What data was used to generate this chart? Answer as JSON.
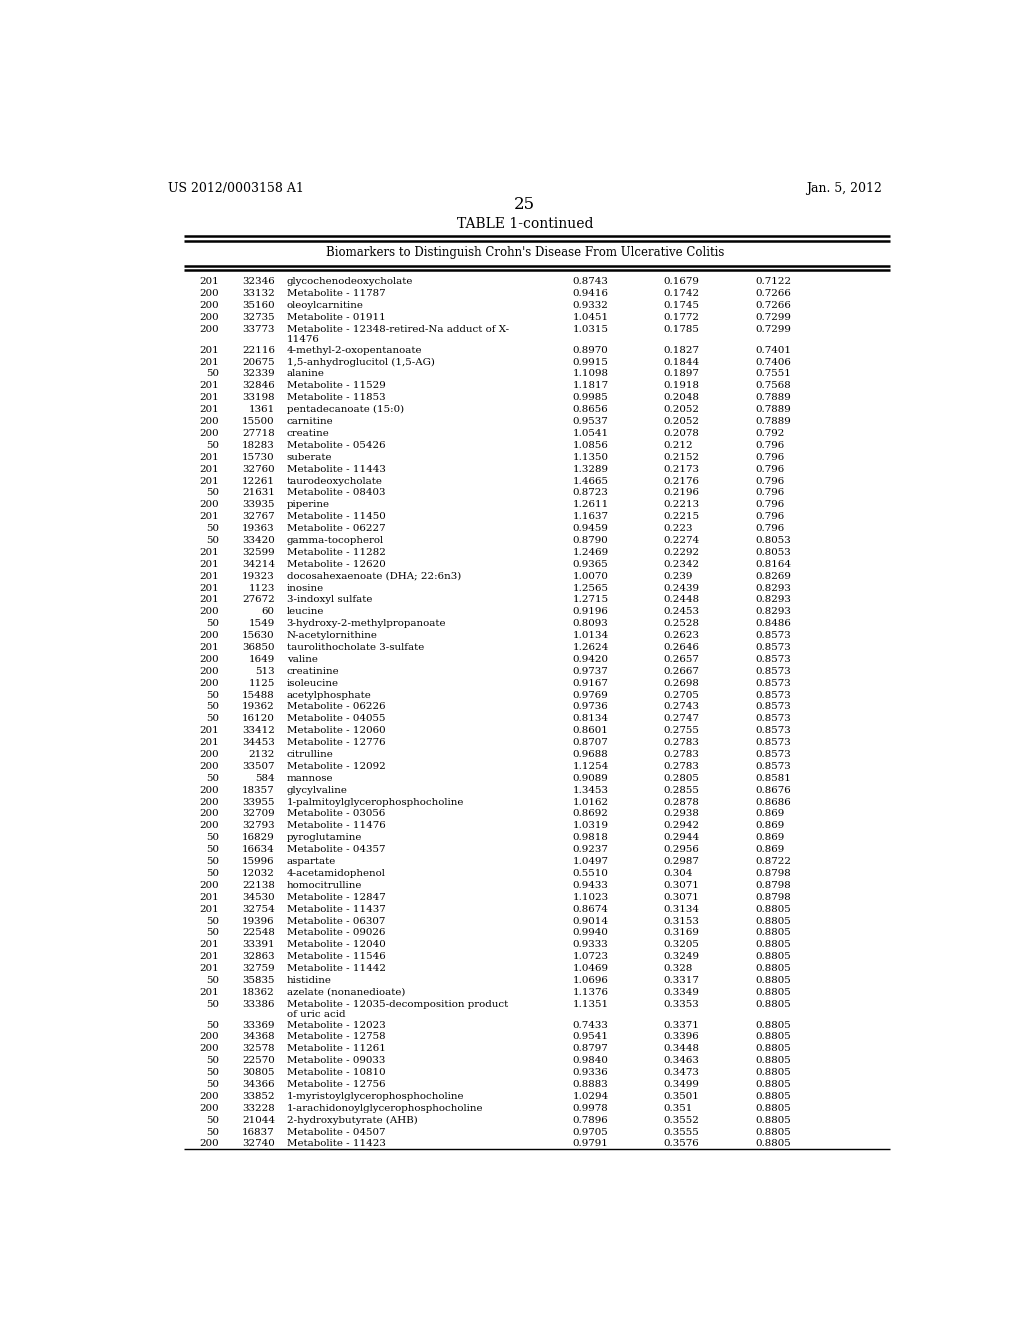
{
  "header_left": "US 2012/0003158 A1",
  "header_right": "Jan. 5, 2012",
  "page_number": "25",
  "table_title": "TABLE 1-continued",
  "table_subtitle": "Biomarkers to Distinguish Crohn's Disease From Ulcerative Colitis",
  "rows": [
    [
      "201",
      "32346",
      "glycochenodeoxycholate",
      "0.8743",
      "0.1679",
      "0.7122"
    ],
    [
      "200",
      "33132",
      "Metabolite - 11787",
      "0.9416",
      "0.1742",
      "0.7266"
    ],
    [
      "200",
      "35160",
      "oleoylcarnitine",
      "0.9332",
      "0.1745",
      "0.7266"
    ],
    [
      "200",
      "32735",
      "Metabolite - 01911",
      "1.0451",
      "0.1772",
      "0.7299"
    ],
    [
      "200",
      "33773",
      "Metabolite - 12348-retired-Na adduct of X-\n11476",
      "1.0315",
      "0.1785",
      "0.7299"
    ],
    [
      "201",
      "22116",
      "4-methyl-2-oxopentanoate",
      "0.8970",
      "0.1827",
      "0.7401"
    ],
    [
      "201",
      "20675",
      "1,5-anhydroglucitol (1,5-AG)",
      "0.9915",
      "0.1844",
      "0.7406"
    ],
    [
      "50",
      "32339",
      "alanine",
      "1.1098",
      "0.1897",
      "0.7551"
    ],
    [
      "201",
      "32846",
      "Metabolite - 11529",
      "1.1817",
      "0.1918",
      "0.7568"
    ],
    [
      "201",
      "33198",
      "Metabolite - 11853",
      "0.9985",
      "0.2048",
      "0.7889"
    ],
    [
      "201",
      "1361",
      "pentadecanoate (15:0)",
      "0.8656",
      "0.2052",
      "0.7889"
    ],
    [
      "200",
      "15500",
      "carnitine",
      "0.9537",
      "0.2052",
      "0.7889"
    ],
    [
      "200",
      "27718",
      "creatine",
      "1.0541",
      "0.2078",
      "0.792"
    ],
    [
      "50",
      "18283",
      "Metabolite - 05426",
      "1.0856",
      "0.212",
      "0.796"
    ],
    [
      "201",
      "15730",
      "suberate",
      "1.1350",
      "0.2152",
      "0.796"
    ],
    [
      "201",
      "32760",
      "Metabolite - 11443",
      "1.3289",
      "0.2173",
      "0.796"
    ],
    [
      "201",
      "12261",
      "taurodeoxycholate",
      "1.4665",
      "0.2176",
      "0.796"
    ],
    [
      "50",
      "21631",
      "Metabolite - 08403",
      "0.8723",
      "0.2196",
      "0.796"
    ],
    [
      "200",
      "33935",
      "piperine",
      "1.2611",
      "0.2213",
      "0.796"
    ],
    [
      "201",
      "32767",
      "Metabolite - 11450",
      "1.1637",
      "0.2215",
      "0.796"
    ],
    [
      "50",
      "19363",
      "Metabolite - 06227",
      "0.9459",
      "0.223",
      "0.796"
    ],
    [
      "50",
      "33420",
      "gamma-tocopherol",
      "0.8790",
      "0.2274",
      "0.8053"
    ],
    [
      "201",
      "32599",
      "Metabolite - 11282",
      "1.2469",
      "0.2292",
      "0.8053"
    ],
    [
      "201",
      "34214",
      "Metabolite - 12620",
      "0.9365",
      "0.2342",
      "0.8164"
    ],
    [
      "201",
      "19323",
      "docosahexaenoate (DHA; 22:6n3)",
      "1.0070",
      "0.239",
      "0.8269"
    ],
    [
      "201",
      "1123",
      "inosine",
      "1.2565",
      "0.2439",
      "0.8293"
    ],
    [
      "201",
      "27672",
      "3-indoxyl sulfate",
      "1.2715",
      "0.2448",
      "0.8293"
    ],
    [
      "200",
      "60",
      "leucine",
      "0.9196",
      "0.2453",
      "0.8293"
    ],
    [
      "50",
      "1549",
      "3-hydroxy-2-methylpropanoate",
      "0.8093",
      "0.2528",
      "0.8486"
    ],
    [
      "200",
      "15630",
      "N-acetylornithine",
      "1.0134",
      "0.2623",
      "0.8573"
    ],
    [
      "201",
      "36850",
      "taurolithocholate 3-sulfate",
      "1.2624",
      "0.2646",
      "0.8573"
    ],
    [
      "200",
      "1649",
      "valine",
      "0.9420",
      "0.2657",
      "0.8573"
    ],
    [
      "200",
      "513",
      "creatinine",
      "0.9737",
      "0.2667",
      "0.8573"
    ],
    [
      "200",
      "1125",
      "isoleucine",
      "0.9167",
      "0.2698",
      "0.8573"
    ],
    [
      "50",
      "15488",
      "acetylphosphate",
      "0.9769",
      "0.2705",
      "0.8573"
    ],
    [
      "50",
      "19362",
      "Metabolite - 06226",
      "0.9736",
      "0.2743",
      "0.8573"
    ],
    [
      "50",
      "16120",
      "Metabolite - 04055",
      "0.8134",
      "0.2747",
      "0.8573"
    ],
    [
      "201",
      "33412",
      "Metabolite - 12060",
      "0.8601",
      "0.2755",
      "0.8573"
    ],
    [
      "201",
      "34453",
      "Metabolite - 12776",
      "0.8707",
      "0.2783",
      "0.8573"
    ],
    [
      "200",
      "2132",
      "citrulline",
      "0.9688",
      "0.2783",
      "0.8573"
    ],
    [
      "200",
      "33507",
      "Metabolite - 12092",
      "1.1254",
      "0.2783",
      "0.8573"
    ],
    [
      "50",
      "584",
      "mannose",
      "0.9089",
      "0.2805",
      "0.8581"
    ],
    [
      "200",
      "18357",
      "glycylvaline",
      "1.3453",
      "0.2855",
      "0.8676"
    ],
    [
      "200",
      "33955",
      "1-palmitoylglycerophosphocholine",
      "1.0162",
      "0.2878",
      "0.8686"
    ],
    [
      "200",
      "32709",
      "Metabolite - 03056",
      "0.8692",
      "0.2938",
      "0.869"
    ],
    [
      "200",
      "32793",
      "Metabolite - 11476",
      "1.0319",
      "0.2942",
      "0.869"
    ],
    [
      "50",
      "16829",
      "pyroglutamine",
      "0.9818",
      "0.2944",
      "0.869"
    ],
    [
      "50",
      "16634",
      "Metabolite - 04357",
      "0.9237",
      "0.2956",
      "0.869"
    ],
    [
      "50",
      "15996",
      "aspartate",
      "1.0497",
      "0.2987",
      "0.8722"
    ],
    [
      "50",
      "12032",
      "4-acetamidophenol",
      "0.5510",
      "0.304",
      "0.8798"
    ],
    [
      "200",
      "22138",
      "homocitrulline",
      "0.9433",
      "0.3071",
      "0.8798"
    ],
    [
      "201",
      "34530",
      "Metabolite - 12847",
      "1.1023",
      "0.3071",
      "0.8798"
    ],
    [
      "201",
      "32754",
      "Metabolite - 11437",
      "0.8674",
      "0.3134",
      "0.8805"
    ],
    [
      "50",
      "19396",
      "Metabolite - 06307",
      "0.9014",
      "0.3153",
      "0.8805"
    ],
    [
      "50",
      "22548",
      "Metabolite - 09026",
      "0.9940",
      "0.3169",
      "0.8805"
    ],
    [
      "201",
      "33391",
      "Metabolite - 12040",
      "0.9333",
      "0.3205",
      "0.8805"
    ],
    [
      "201",
      "32863",
      "Metabolite - 11546",
      "1.0723",
      "0.3249",
      "0.8805"
    ],
    [
      "201",
      "32759",
      "Metabolite - 11442",
      "1.0469",
      "0.328",
      "0.8805"
    ],
    [
      "50",
      "35835",
      "histidine",
      "1.0696",
      "0.3317",
      "0.8805"
    ],
    [
      "201",
      "18362",
      "azelate (nonanedioate)",
      "1.1376",
      "0.3349",
      "0.8805"
    ],
    [
      "50",
      "33386",
      "Metabolite - 12035-decomposition product\nof uric acid",
      "1.1351",
      "0.3353",
      "0.8805"
    ],
    [
      "50",
      "33369",
      "Metabolite - 12023",
      "0.7433",
      "0.3371",
      "0.8805"
    ],
    [
      "200",
      "34368",
      "Metabolite - 12758",
      "0.9541",
      "0.3396",
      "0.8805"
    ],
    [
      "200",
      "32578",
      "Metabolite - 11261",
      "0.8797",
      "0.3448",
      "0.8805"
    ],
    [
      "50",
      "22570",
      "Metabolite - 09033",
      "0.9840",
      "0.3463",
      "0.8805"
    ],
    [
      "50",
      "30805",
      "Metabolite - 10810",
      "0.9336",
      "0.3473",
      "0.8805"
    ],
    [
      "50",
      "34366",
      "Metabolite - 12756",
      "0.8883",
      "0.3499",
      "0.8805"
    ],
    [
      "200",
      "33852",
      "1-myristoylglycerophosphocholine",
      "1.0294",
      "0.3501",
      "0.8805"
    ],
    [
      "200",
      "33228",
      "1-arachidonoylglycerophosphocholine",
      "0.9978",
      "0.351",
      "0.8805"
    ],
    [
      "50",
      "21044",
      "2-hydroxybutyrate (AHB)",
      "0.7896",
      "0.3552",
      "0.8805"
    ],
    [
      "50",
      "16837",
      "Metabolite - 04507",
      "0.9705",
      "0.3555",
      "0.8805"
    ],
    [
      "200",
      "32740",
      "Metabolite - 11423",
      "0.9791",
      "0.3576",
      "0.8805"
    ]
  ]
}
